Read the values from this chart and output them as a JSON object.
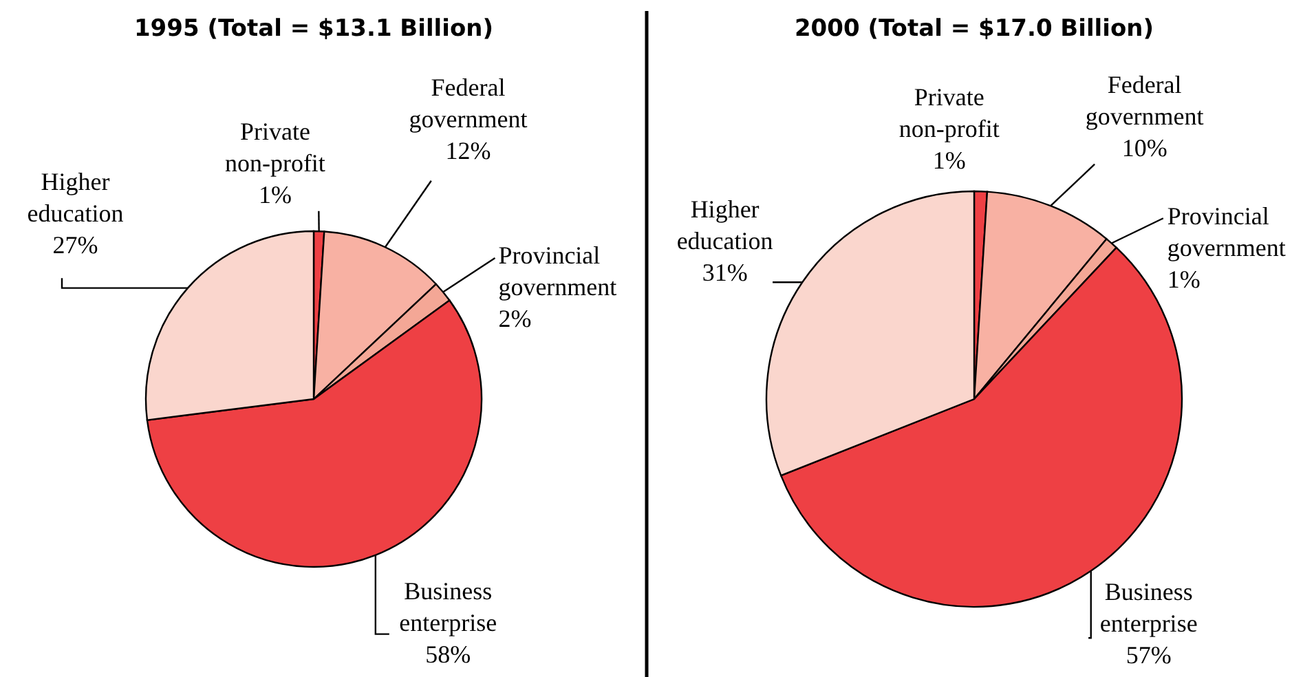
{
  "chart_data": [
    {
      "type": "pie",
      "title": "1995 (Total = $13.1 Billion)",
      "categories": [
        "Private non-profit",
        "Federal government",
        "Provincial government",
        "Business enterprise",
        "Higher education"
      ],
      "values": [
        1,
        12,
        2,
        58,
        27
      ],
      "value_labels": [
        "1%",
        "12%",
        "2%",
        "58%",
        "27%"
      ],
      "colors": [
        "#ee4044",
        "#f8b1a3",
        "#f4a796",
        "#ee4044",
        "#fad6cd"
      ]
    },
    {
      "type": "pie",
      "title": "2000 (Total = $17.0 Billion)",
      "categories": [
        "Private non-profit",
        "Federal government",
        "Provincial government",
        "Business enterprise",
        "Higher education"
      ],
      "values": [
        1,
        10,
        1,
        57,
        31
      ],
      "value_labels": [
        "1%",
        "10%",
        "1%",
        "57%",
        "31%"
      ],
      "colors": [
        "#ee4044",
        "#f8b1a3",
        "#f4a796",
        "#ee4044",
        "#fad6cd"
      ]
    }
  ]
}
